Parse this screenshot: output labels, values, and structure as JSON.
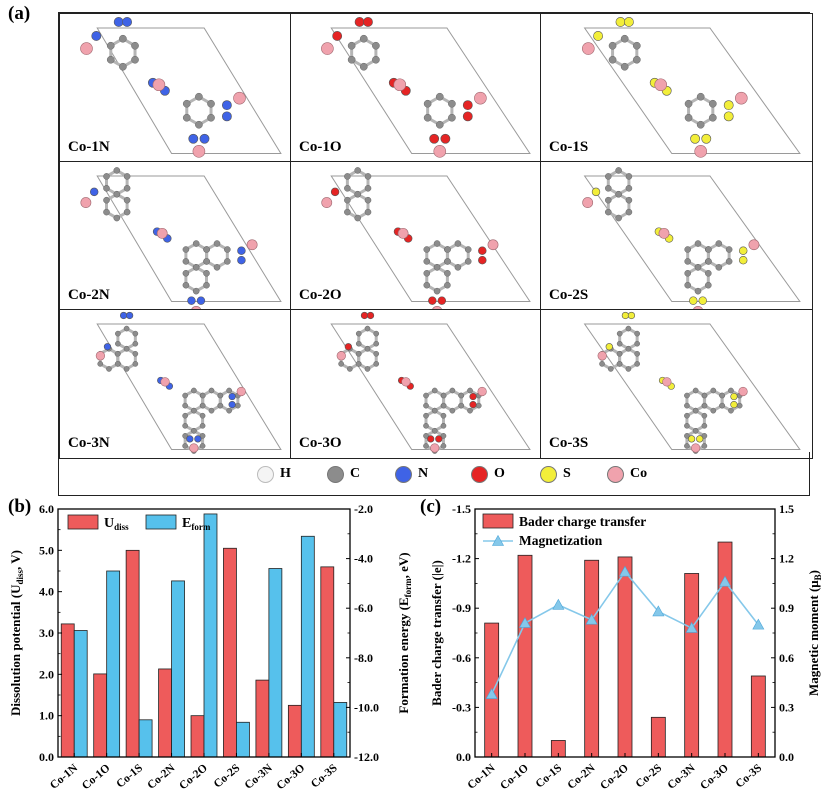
{
  "panel_labels": [
    "(a)",
    "(b)",
    "(c)"
  ],
  "structures": [
    {
      "label": "Co-1N",
      "element": "N",
      "size": 1
    },
    {
      "label": "Co-1O",
      "element": "O",
      "size": 1
    },
    {
      "label": "Co-1S",
      "element": "S",
      "size": 1
    },
    {
      "label": "Co-2N",
      "element": "N",
      "size": 2
    },
    {
      "label": "Co-2O",
      "element": "O",
      "size": 2
    },
    {
      "label": "Co-2S",
      "element": "S",
      "size": 2
    },
    {
      "label": "Co-3N",
      "element": "N",
      "size": 3
    },
    {
      "label": "Co-3O",
      "element": "O",
      "size": 3
    },
    {
      "label": "Co-3S",
      "element": "S",
      "size": 3
    }
  ],
  "atom_legend": [
    {
      "symbol": "H",
      "color": "#f4f4f4"
    },
    {
      "symbol": "C",
      "color": "#8c8c8c"
    },
    {
      "symbol": "N",
      "color": "#3f63e6"
    },
    {
      "symbol": "O",
      "color": "#e52424"
    },
    {
      "symbol": "S",
      "color": "#f2ee3a"
    },
    {
      "symbol": "Co",
      "color": "#f0a2ad"
    }
  ],
  "chart_data": [
    {
      "type": "bar",
      "panel": "(b)",
      "categories": [
        "Co-1N",
        "Co-1O",
        "Co-1S",
        "Co-2N",
        "Co-2O",
        "Co-2S",
        "Co-3N",
        "Co-3O",
        "Co-3S"
      ],
      "series": [
        {
          "name": "U",
          "name_sub": "diss",
          "axis": "left",
          "color": "#ee5b5b",
          "values": [
            3.22,
            2.01,
            5.0,
            2.13,
            1.0,
            5.05,
            1.86,
            1.25,
            4.6
          ]
        },
        {
          "name": "E",
          "name_sub": "form",
          "axis": "right",
          "color": "#56c1ec",
          "values": [
            -6.9,
            -4.5,
            -10.5,
            -4.9,
            -2.2,
            -10.6,
            -4.4,
            -3.1,
            -9.8
          ]
        }
      ],
      "ylabel_left": {
        "main": "Dissolution potential (U",
        "sub": "diss",
        "tail": ", V)"
      },
      "ylabel_right": {
        "main": "Formation energy (E",
        "sub": "form",
        "tail": ", eV)"
      },
      "ylim_left": [
        0,
        6
      ],
      "ylim_right": [
        -12,
        -2
      ],
      "yticks_left": [
        "0.0",
        "1.0",
        "2.0",
        "3.0",
        "4.0",
        "5.0",
        "6.0"
      ],
      "yticks_right": [
        "-12.0",
        "-10.0",
        "-8.0",
        "-6.0",
        "-4.0",
        "-2.0"
      ],
      "legend_position": "top-left"
    },
    {
      "type": "bar",
      "panel": "(c)",
      "categories": [
        "Co-1N",
        "Co-1O",
        "Co-1S",
        "Co-2N",
        "Co-2O",
        "Co-2S",
        "Co-3N",
        "Co-3O",
        "Co-3S"
      ],
      "series": [
        {
          "name": "Bader charge transfer",
          "axis": "left",
          "kind": "bar",
          "color": "#ee5b5b",
          "values": [
            -0.81,
            -1.22,
            -0.1,
            -1.19,
            -1.21,
            -0.24,
            -1.11,
            -1.3,
            -0.49
          ]
        },
        {
          "name": "Magnetization",
          "axis": "right",
          "kind": "line",
          "color": "#85c8ea",
          "values": [
            0.38,
            0.81,
            0.92,
            0.83,
            1.12,
            0.88,
            0.78,
            1.06,
            0.8
          ]
        }
      ],
      "ylabel_left": {
        "main": "Bader charge transfer (|e|)"
      },
      "ylabel_right": {
        "main": "Magnetic moment (μ",
        "sub": "B",
        "tail": ")"
      },
      "ylim_left": [
        0,
        -1.5
      ],
      "ylim_right": [
        0,
        1.5
      ],
      "yticks_left": [
        "0.0",
        "-0.3",
        "-0.6",
        "-0.9",
        "-1.2",
        "-1.5"
      ],
      "yticks_right": [
        "0.0",
        "0.3",
        "0.6",
        "0.9",
        "1.2",
        "1.5"
      ],
      "legend_position": "top-left"
    }
  ]
}
